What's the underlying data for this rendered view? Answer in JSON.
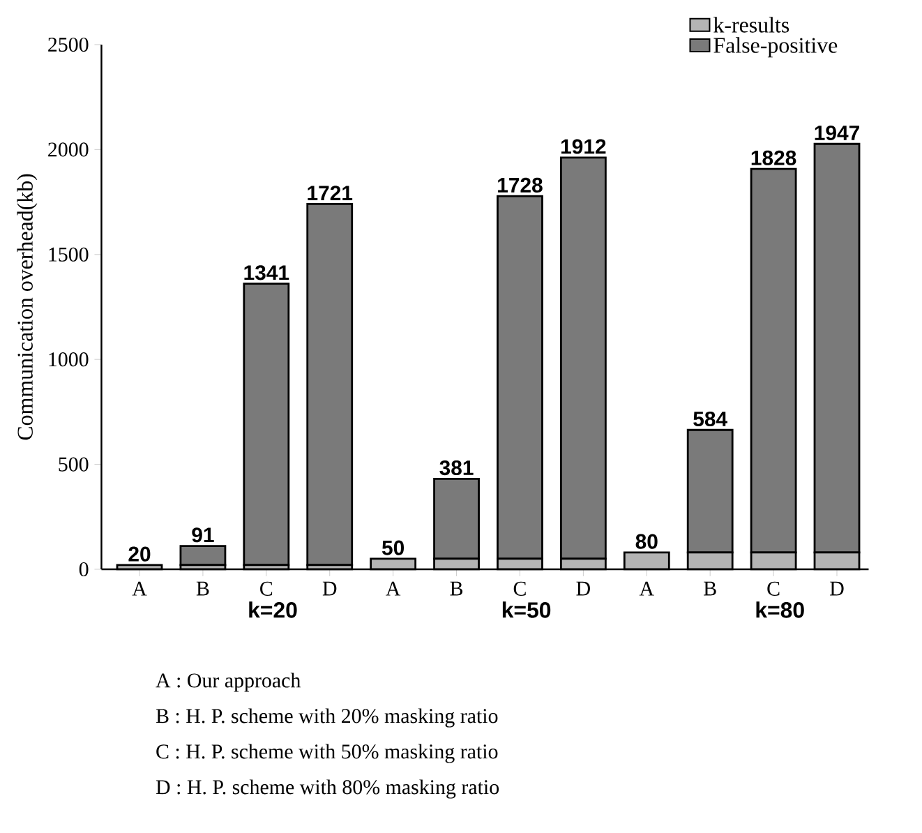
{
  "chart_data": {
    "type": "bar",
    "stacked": true,
    "ylabel": "Communication overhead(kb)",
    "categories": [
      "A",
      "B",
      "C",
      "D",
      "A",
      "B",
      "C",
      "D",
      "A",
      "B",
      "C",
      "D"
    ],
    "series": [
      {
        "name": "k-results",
        "color": "#b4b4b4",
        "values": [
          20,
          20,
          20,
          20,
          50,
          50,
          50,
          50,
          80,
          80,
          80,
          80
        ],
        "value_labels": [
          "20",
          null,
          null,
          null,
          "50",
          null,
          null,
          null,
          "80",
          null,
          null,
          null
        ]
      },
      {
        "name": "False-positive",
        "color": "#7a7a7a",
        "values": [
          0,
          91,
          1341,
          1721,
          0,
          381,
          1728,
          1912,
          0,
          584,
          1828,
          1947
        ],
        "value_labels": [
          null,
          "91",
          "1341",
          "1721",
          null,
          "381",
          "1728",
          "1912",
          null,
          "584",
          "1828",
          "1947"
        ]
      }
    ],
    "ylim": [
      0,
      2500
    ],
    "yticks": [
      0,
      500,
      1000,
      1500,
      2000,
      2500
    ],
    "legend": "top right",
    "annotations": [
      "k=20",
      "k=50",
      "k=80",
      "A : Our approach",
      "B : H. P. scheme with 20% masking ratio",
      "C : H. P. scheme with 50% masking ratio",
      "D : H. P. scheme with 80% masking ratio"
    ]
  }
}
